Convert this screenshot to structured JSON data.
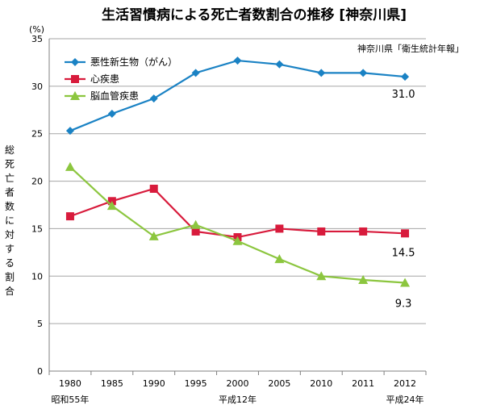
{
  "chart_data": {
    "type": "line",
    "title": "生活習慣病による死亡者数割合の推移 [神奈川県]",
    "source": "神奈川県「衛生統計年報」",
    "unit": "(%)",
    "ylabel_chars": [
      "総",
      "死",
      "亡",
      "者",
      "数",
      "に",
      "対",
      "す",
      "る",
      "割",
      "合"
    ],
    "categories": [
      "1980",
      "1985",
      "1990",
      "1995",
      "2000",
      "2005",
      "2010",
      "2011",
      "2012"
    ],
    "era_labels": [
      {
        "index": 0,
        "text": "昭和55年"
      },
      {
        "index": 4,
        "text": "平成12年"
      },
      {
        "index": 8,
        "text": "平成24年"
      }
    ],
    "ylim": [
      0,
      35
    ],
    "yticks": [
      0,
      5,
      10,
      15,
      20,
      25,
      30,
      35
    ],
    "grid": true,
    "legend_position": "top-left",
    "series": [
      {
        "name": "悪性新生物（がん）",
        "color": "#1a82c4",
        "marker": "diamond",
        "values": [
          25.3,
          27.1,
          28.7,
          31.4,
          32.7,
          32.3,
          31.4,
          31.4,
          31.0
        ],
        "end_label": "31.0"
      },
      {
        "name": "心疾患",
        "color": "#d81b3c",
        "marker": "square",
        "values": [
          16.3,
          17.9,
          19.2,
          14.7,
          14.1,
          15.0,
          14.7,
          14.7,
          14.5
        ],
        "end_label": "14.5"
      },
      {
        "name": "脳血管疾患",
        "color": "#8cc63f",
        "marker": "triangle",
        "values": [
          21.5,
          17.4,
          14.2,
          15.4,
          13.7,
          11.8,
          10.0,
          9.6,
          9.3
        ],
        "end_label": "9.3"
      }
    ]
  }
}
